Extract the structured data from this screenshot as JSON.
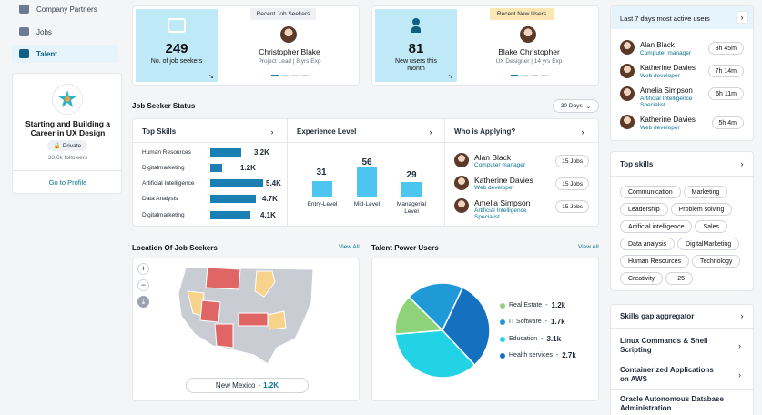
{
  "sidebar": {
    "items": [
      {
        "label": "Company Partners",
        "icon": "building-icon"
      },
      {
        "label": "Jobs",
        "icon": "briefcase-icon"
      },
      {
        "label": "Talent",
        "icon": "users-icon"
      }
    ]
  },
  "profile": {
    "title": "Starting and Building a Career in UX Design",
    "privacy": "Private",
    "followers": "33.6k followers",
    "cta": "Go to Profile"
  },
  "job_seekers_card": {
    "count": "249",
    "label": "No. of job seekers",
    "tab": "Recent Job Seekers",
    "person_name": "Christopher Blake",
    "person_meta": "Project Lead  |  8 yrs Exp"
  },
  "new_users_card": {
    "count": "81",
    "label": "New users this month",
    "tab": "Recent New Users",
    "person_name": "Blake Christopher",
    "person_meta": "UX Designer  |  14 yrs Exp"
  },
  "status": {
    "title": "Job Seeker Status",
    "period": "30 Days"
  },
  "top_skills": {
    "title": "Top Skills",
    "items": [
      {
        "label": "Human Resources",
        "value": "3.2K",
        "num": 3.2
      },
      {
        "label": "Digitalmarketing",
        "value": "1.2K",
        "num": 1.2
      },
      {
        "label": "Artificial Intelligence",
        "value": "5.4K",
        "num": 5.4
      },
      {
        "label": "Data Analysis",
        "value": "4.7K",
        "num": 4.7
      },
      {
        "label": "Digitalmarketing",
        "value": "4.1K",
        "num": 4.1
      }
    ]
  },
  "experience": {
    "title": "Experience Level",
    "levels": [
      {
        "label": "Entry-Level",
        "value": "31",
        "num": 31
      },
      {
        "label": "Mid-Level",
        "value": "56",
        "num": 56
      },
      {
        "label": "Managerial Level",
        "value": "29",
        "num": 29
      }
    ]
  },
  "applying": {
    "title": "Who is Applying?",
    "people": [
      {
        "name": "Alan Black",
        "role": "Computer manager",
        "jobs": "15 Jobs"
      },
      {
        "name": "Katherine Davies",
        "role": "Web developer",
        "jobs": "15 Jobs"
      },
      {
        "name": "Amelia Simpson",
        "role": "Artificial Intelligence Specialist",
        "jobs": "15 Jobs"
      }
    ]
  },
  "location": {
    "title": "Location Of Job Seekers",
    "view_all": "View All",
    "selected_state": "New Mexico",
    "selected_value": "1.2K",
    "zoom_in": "+",
    "zoom_out": "−"
  },
  "power_users": {
    "title": "Talent Power Users",
    "view_all": "View All",
    "slices": [
      {
        "label": "Real Estate",
        "value": "1.2k",
        "num": 1.2,
        "color": "#8ed37a"
      },
      {
        "label": "IT Software",
        "value": "1.7k",
        "num": 1.7,
        "color": "#1f9ad6"
      },
      {
        "label": "Education",
        "value": "3.1k",
        "num": 3.1,
        "color": "#22d3e6"
      },
      {
        "label": "Health services",
        "value": "2.7k",
        "num": 2.7,
        "color": "#1570c0"
      }
    ]
  },
  "active_users": {
    "title": "Last 7 days most active users",
    "users": [
      {
        "name": "Alan Black",
        "role": "Computer manager",
        "time": "8h 45m"
      },
      {
        "name": "Katherine Davies",
        "role": "Web developer",
        "time": "7h 14m"
      },
      {
        "name": "Amelia Simpson",
        "role": "Artificial Intelligence Specialist",
        "time": "6h 11m"
      },
      {
        "name": "Katherine Davies",
        "role": "Web developer",
        "time": "5h 4m"
      }
    ]
  },
  "skills_tags": {
    "title": "Top skills",
    "tags": [
      "Communication",
      "Marketing",
      "Leadership",
      "Problem solving",
      "Artificial intelligence",
      "Sales",
      "Data analysis",
      "DigitalMarketing",
      "Human Resources",
      "Technology",
      "Creativity"
    ],
    "more": "+25"
  },
  "gap": {
    "title": "Skills gap aggregator",
    "items": [
      "Linux Commands & Shell Scripting",
      "Containerized Applications on AWS",
      "Oracle Autonomous Database Administration"
    ]
  },
  "colors": {
    "accent": "#1b7fb3",
    "tile_bg": "#bfe9f7",
    "map_red": "#e06666",
    "map_yellow": "#f7d28a"
  }
}
